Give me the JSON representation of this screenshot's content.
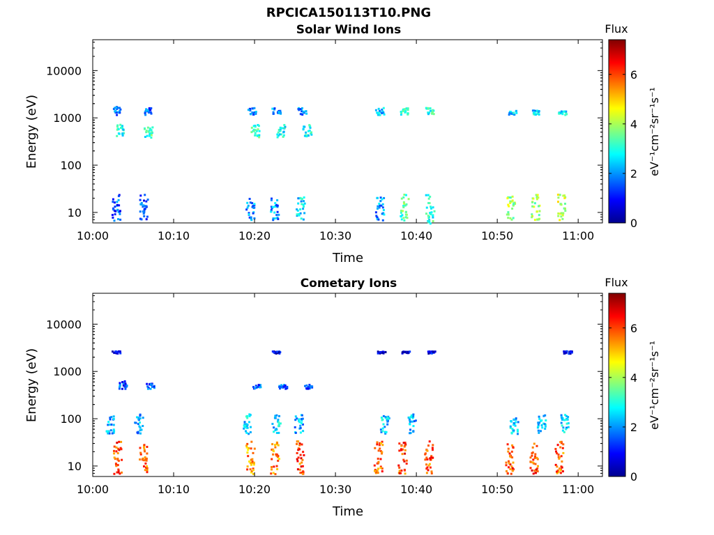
{
  "figure_title": "RPCICA150113T10.PNG",
  "chart_data": [
    {
      "type": "heatmap",
      "title": "Solar Wind Ions",
      "xlabel": "Time",
      "ylabel": "Energy (eV)",
      "x_ticks": [
        "10:00",
        "10:10",
        "10:20",
        "10:30",
        "10:40",
        "10:50",
        "11:00"
      ],
      "x_range_minutes": [
        0,
        63
      ],
      "y_scale": "log",
      "y_range": [
        6,
        45000
      ],
      "y_ticks": [
        10,
        100,
        1000,
        10000
      ],
      "y_tick_labels": [
        "10",
        "100",
        "1000",
        "10000"
      ],
      "colorbar": {
        "title": "Flux",
        "unit": "eV⁻¹cm⁻²sr⁻¹s⁻¹",
        "range": [
          0,
          7.4
        ],
        "ticks": [
          0,
          2,
          4,
          6
        ],
        "colormap": "jet"
      },
      "clusters": [
        {
          "t": 3.2,
          "energy_min": 400,
          "energy_max": 800,
          "flux": 3.0
        },
        {
          "t": 6.8,
          "energy_min": 400,
          "energy_max": 750,
          "flux": 3.1
        },
        {
          "t": 3.0,
          "energy_min": 1200,
          "energy_max": 1800,
          "flux": 1.6
        },
        {
          "t": 6.6,
          "energy_min": 1200,
          "energy_max": 1700,
          "flux": 1.6
        },
        {
          "t": 19.6,
          "energy_min": 1200,
          "energy_max": 1700,
          "flux": 1.8
        },
        {
          "t": 22.6,
          "energy_min": 1200,
          "energy_max": 1700,
          "flux": 1.8
        },
        {
          "t": 25.8,
          "energy_min": 1200,
          "energy_max": 1700,
          "flux": 2.0
        },
        {
          "t": 20.0,
          "energy_min": 400,
          "energy_max": 750,
          "flux": 3.0
        },
        {
          "t": 23.2,
          "energy_min": 400,
          "energy_max": 750,
          "flux": 3.0
        },
        {
          "t": 26.4,
          "energy_min": 400,
          "energy_max": 750,
          "flux": 2.8
        },
        {
          "t": 35.4,
          "energy_min": 1200,
          "energy_max": 1700,
          "flux": 2.2
        },
        {
          "t": 38.4,
          "energy_min": 1200,
          "energy_max": 1700,
          "flux": 3.0
        },
        {
          "t": 41.6,
          "energy_min": 1200,
          "energy_max": 1700,
          "flux": 3.0
        },
        {
          "t": 51.8,
          "energy_min": 1200,
          "energy_max": 1500,
          "flux": 2.6
        },
        {
          "t": 54.8,
          "energy_min": 1200,
          "energy_max": 1500,
          "flux": 2.6
        },
        {
          "t": 58.0,
          "energy_min": 1200,
          "energy_max": 1500,
          "flux": 2.6
        },
        {
          "t": 2.8,
          "energy_min": 7,
          "energy_max": 25,
          "flux": 1.5
        },
        {
          "t": 6.2,
          "energy_min": 7,
          "energy_max": 25,
          "flux": 1.5
        },
        {
          "t": 19.4,
          "energy_min": 7,
          "energy_max": 22,
          "flux": 2.0
        },
        {
          "t": 22.4,
          "energy_min": 7,
          "energy_max": 22,
          "flux": 2.0
        },
        {
          "t": 25.6,
          "energy_min": 7,
          "energy_max": 22,
          "flux": 2.6
        },
        {
          "t": 35.4,
          "energy_min": 7,
          "energy_max": 22,
          "flux": 2.0
        },
        {
          "t": 38.4,
          "energy_min": 7,
          "energy_max": 25,
          "flux": 3.4
        },
        {
          "t": 41.6,
          "energy_min": 6,
          "energy_max": 25,
          "flux": 3.0
        },
        {
          "t": 51.6,
          "energy_min": 7,
          "energy_max": 25,
          "flux": 4.0
        },
        {
          "t": 54.6,
          "energy_min": 7,
          "energy_max": 25,
          "flux": 4.0
        },
        {
          "t": 57.8,
          "energy_min": 7,
          "energy_max": 25,
          "flux": 4.2
        }
      ]
    },
    {
      "type": "heatmap",
      "title": "Cometary Ions",
      "xlabel": "Time",
      "ylabel": "Energy (eV)",
      "x_ticks": [
        "10:00",
        "10:10",
        "10:20",
        "10:30",
        "10:40",
        "10:50",
        "11:00"
      ],
      "x_range_minutes": [
        0,
        63
      ],
      "y_scale": "log",
      "y_range": [
        6,
        45000
      ],
      "y_ticks": [
        10,
        100,
        1000,
        10000
      ],
      "y_tick_labels": [
        "10",
        "100",
        "1000",
        "10000"
      ],
      "colorbar": {
        "title": "Flux",
        "unit": "eV⁻¹cm⁻²sr⁻¹s⁻¹",
        "range": [
          0,
          7.4
        ],
        "ticks": [
          0,
          2,
          4,
          6
        ],
        "colormap": "jet"
      },
      "clusters": [
        {
          "t": 3.0,
          "energy_min": 7,
          "energy_max": 35,
          "flux": 6.0
        },
        {
          "t": 6.2,
          "energy_min": 7,
          "energy_max": 30,
          "flux": 5.8
        },
        {
          "t": 19.4,
          "energy_min": 7,
          "energy_max": 35,
          "flux": 5.4
        },
        {
          "t": 22.4,
          "energy_min": 7,
          "energy_max": 35,
          "flux": 5.6
        },
        {
          "t": 25.6,
          "energy_min": 7,
          "energy_max": 35,
          "flux": 6.0
        },
        {
          "t": 35.2,
          "energy_min": 7,
          "energy_max": 35,
          "flux": 5.8
        },
        {
          "t": 38.2,
          "energy_min": 7,
          "energy_max": 35,
          "flux": 6.0
        },
        {
          "t": 41.4,
          "energy_min": 7,
          "energy_max": 35,
          "flux": 5.8
        },
        {
          "t": 51.4,
          "energy_min": 7,
          "energy_max": 35,
          "flux": 6.0
        },
        {
          "t": 54.4,
          "energy_min": 7,
          "energy_max": 35,
          "flux": 6.0
        },
        {
          "t": 57.6,
          "energy_min": 7,
          "energy_max": 35,
          "flux": 5.8
        },
        {
          "t": 2.0,
          "energy_min": 50,
          "energy_max": 130,
          "flux": 2.2
        },
        {
          "t": 5.6,
          "energy_min": 50,
          "energy_max": 130,
          "flux": 2.2
        },
        {
          "t": 19.0,
          "energy_min": 50,
          "energy_max": 130,
          "flux": 2.4
        },
        {
          "t": 22.6,
          "energy_min": 50,
          "energy_max": 130,
          "flux": 2.4
        },
        {
          "t": 25.4,
          "energy_min": 50,
          "energy_max": 130,
          "flux": 2.2
        },
        {
          "t": 36.0,
          "energy_min": 50,
          "energy_max": 130,
          "flux": 2.4
        },
        {
          "t": 39.4,
          "energy_min": 50,
          "energy_max": 130,
          "flux": 2.2
        },
        {
          "t": 52.0,
          "energy_min": 50,
          "energy_max": 130,
          "flux": 2.4
        },
        {
          "t": 55.4,
          "energy_min": 50,
          "energy_max": 130,
          "flux": 2.2
        },
        {
          "t": 58.2,
          "energy_min": 50,
          "energy_max": 130,
          "flux": 2.4
        },
        {
          "t": 3.6,
          "energy_min": 450,
          "energy_max": 650,
          "flux": 1.4
        },
        {
          "t": 7.0,
          "energy_min": 450,
          "energy_max": 600,
          "flux": 1.6
        },
        {
          "t": 20.2,
          "energy_min": 450,
          "energy_max": 550,
          "flux": 1.6
        },
        {
          "t": 23.4,
          "energy_min": 450,
          "energy_max": 550,
          "flux": 1.6
        },
        {
          "t": 26.6,
          "energy_min": 450,
          "energy_max": 550,
          "flux": 1.6
        },
        {
          "t": 2.8,
          "energy_min": 2500,
          "energy_max": 2800,
          "flux": 0.6
        },
        {
          "t": 22.6,
          "energy_min": 2500,
          "energy_max": 2800,
          "flux": 0.6
        },
        {
          "t": 35.6,
          "energy_min": 2500,
          "energy_max": 2800,
          "flux": 0.8
        },
        {
          "t": 38.6,
          "energy_min": 2500,
          "energy_max": 2800,
          "flux": 0.8
        },
        {
          "t": 41.8,
          "energy_min": 2500,
          "energy_max": 2800,
          "flux": 0.8
        },
        {
          "t": 58.6,
          "energy_min": 2500,
          "energy_max": 2800,
          "flux": 0.8
        }
      ]
    }
  ]
}
